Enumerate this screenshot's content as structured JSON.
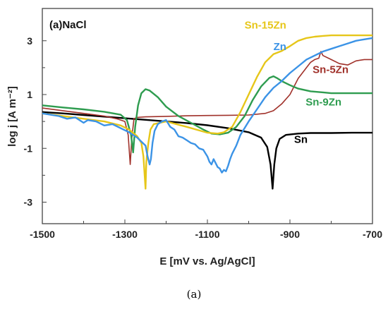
{
  "chart_data": {
    "type": "line",
    "panel_label": "(a)NaCl",
    "xlabel": "E [mV vs. Ag/AgCl]",
    "ylabel": "log j [A m⁻²]",
    "xlim": [
      -1500,
      -700
    ],
    "ylim": [
      -3.8,
      4.2
    ],
    "x_ticks": [
      -1500,
      -1300,
      -1100,
      -900,
      -700
    ],
    "x_tick_labels": [
      "-1500",
      "-1300",
      "-1100",
      "-900",
      "-700"
    ],
    "y_ticks": [
      3,
      1,
      -1,
      -3
    ],
    "y_tick_labels": [
      "3",
      "1",
      "-1",
      "-3"
    ],
    "grid": false,
    "series": [
      {
        "name": "Sn",
        "color": "#000000",
        "x": [
          -1500,
          -1450,
          -1400,
          -1350,
          -1300,
          -1250,
          -1200,
          -1150,
          -1100,
          -1050,
          -1000,
          -970,
          -955,
          -947,
          -942,
          -938,
          -933,
          -925,
          -910,
          -880,
          -850,
          -800,
          -750,
          -700
        ],
        "y": [
          0.35,
          0.3,
          0.24,
          0.18,
          0.12,
          0.06,
          0.0,
          -0.06,
          -0.14,
          -0.25,
          -0.4,
          -0.6,
          -0.95,
          -1.6,
          -2.5,
          -1.6,
          -1.0,
          -0.65,
          -0.5,
          -0.45,
          -0.43,
          -0.43,
          -0.42,
          -0.42
        ]
      },
      {
        "name": "Sn-5Zn",
        "color": "#a0312a",
        "x": [
          -1500,
          -1450,
          -1400,
          -1350,
          -1320,
          -1300,
          -1292,
          -1287,
          -1283,
          -1278,
          -1270,
          -1250,
          -1200,
          -1150,
          -1100,
          -1050,
          -1000,
          -960,
          -940,
          -920,
          -900,
          -880,
          -860,
          -850,
          -840,
          -830,
          -825,
          -820,
          -800,
          -780,
          -760,
          -740,
          -720,
          -700
        ],
        "y": [
          0.5,
          0.4,
          0.3,
          0.2,
          0.1,
          0.0,
          -0.5,
          -1.6,
          -0.6,
          0.1,
          0.15,
          0.17,
          0.19,
          0.21,
          0.22,
          0.23,
          0.24,
          0.3,
          0.4,
          0.65,
          1.0,
          1.6,
          2.0,
          2.2,
          2.3,
          2.35,
          2.6,
          2.45,
          2.3,
          2.15,
          2.1,
          2.25,
          2.3,
          2.3
        ]
      },
      {
        "name": "Sn-9Zn",
        "color": "#2e9c4f",
        "x": [
          -1500,
          -1450,
          -1400,
          -1350,
          -1310,
          -1295,
          -1285,
          -1280,
          -1275,
          -1268,
          -1260,
          -1250,
          -1240,
          -1220,
          -1200,
          -1170,
          -1140,
          -1110,
          -1090,
          -1070,
          -1050,
          -1030,
          -1010,
          -990,
          -970,
          -950,
          -940,
          -930,
          -920,
          -900,
          -880,
          -850,
          -820,
          -800,
          -750,
          -700
        ],
        "y": [
          0.6,
          0.52,
          0.45,
          0.36,
          0.25,
          0.05,
          -0.5,
          -1.15,
          -0.2,
          0.6,
          1.05,
          1.2,
          1.15,
          0.9,
          0.55,
          0.2,
          -0.05,
          -0.3,
          -0.45,
          -0.48,
          -0.42,
          -0.2,
          0.2,
          0.8,
          1.3,
          1.62,
          1.68,
          1.6,
          1.5,
          1.35,
          1.22,
          1.12,
          1.08,
          1.05,
          1.05,
          1.05
        ]
      },
      {
        "name": "Sn-15Zn",
        "color": "#e6c619",
        "x": [
          -1500,
          -1450,
          -1400,
          -1350,
          -1310,
          -1290,
          -1270,
          -1260,
          -1255,
          -1250,
          -1248,
          -1243,
          -1238,
          -1230,
          -1200,
          -1150,
          -1100,
          -1075,
          -1060,
          -1040,
          -1020,
          -1000,
          -980,
          -960,
          -940,
          -920,
          -900,
          -880,
          -860,
          -840,
          -820,
          -800,
          -750,
          -700
        ],
        "y": [
          0.3,
          0.2,
          0.1,
          0.0,
          -0.15,
          -0.3,
          -0.55,
          -0.8,
          -1.3,
          -2.5,
          -1.5,
          -0.8,
          -0.3,
          -0.1,
          0.0,
          -0.2,
          -0.42,
          -0.45,
          -0.4,
          -0.2,
          0.35,
          1.0,
          1.65,
          2.2,
          2.5,
          2.62,
          2.8,
          3.0,
          3.1,
          3.15,
          3.18,
          3.2,
          3.2,
          3.2
        ]
      },
      {
        "name": "Zn",
        "color": "#3b93e6",
        "x": [
          -1500,
          -1480,
          -1460,
          -1440,
          -1420,
          -1400,
          -1390,
          -1370,
          -1350,
          -1330,
          -1310,
          -1290,
          -1280,
          -1270,
          -1260,
          -1250,
          -1245,
          -1240,
          -1237,
          -1233,
          -1228,
          -1220,
          -1210,
          -1200,
          -1190,
          -1180,
          -1170,
          -1160,
          -1150,
          -1140,
          -1130,
          -1120,
          -1110,
          -1100,
          -1095,
          -1090,
          -1085,
          -1080,
          -1075,
          -1070,
          -1065,
          -1060,
          -1055,
          -1050,
          -1045,
          -1040,
          -1030,
          -1020,
          -1000,
          -980,
          -960,
          -940,
          -920,
          -900,
          -880,
          -860,
          -840,
          -820,
          -800,
          -780,
          -760,
          -740,
          -720,
          -700
        ],
        "y": [
          0.3,
          0.25,
          0.2,
          0.1,
          0.15,
          -0.05,
          0.05,
          0.0,
          -0.15,
          -0.1,
          -0.25,
          -0.4,
          -0.5,
          -0.6,
          -0.75,
          -0.9,
          -1.3,
          -1.6,
          -1.4,
          -0.8,
          -0.35,
          -0.1,
          0.0,
          0.05,
          -0.2,
          -0.3,
          -0.55,
          -0.6,
          -0.7,
          -0.8,
          -0.85,
          -1.0,
          -1.05,
          -1.3,
          -1.5,
          -1.6,
          -1.4,
          -1.55,
          -1.7,
          -1.75,
          -1.9,
          -1.8,
          -1.85,
          -1.65,
          -1.4,
          -1.2,
          -0.9,
          -0.5,
          0.0,
          0.45,
          0.9,
          1.25,
          1.5,
          1.8,
          2.05,
          2.3,
          2.45,
          2.6,
          2.7,
          2.8,
          2.9,
          3.0,
          3.05,
          3.1
        ]
      }
    ],
    "legend_labels": [
      {
        "name": "Sn-15Zn",
        "color": "#e6c619",
        "x": -1010,
        "y": 3.45
      },
      {
        "name": "Zn",
        "color": "#3b93e6",
        "x": -940,
        "y": 2.65
      },
      {
        "name": "Sn-5Zn",
        "color": "#a0312a",
        "x": -845,
        "y": 1.8
      },
      {
        "name": "Sn-9Zn",
        "color": "#2e9c4f",
        "x": -862,
        "y": 0.6
      },
      {
        "name": "Sn",
        "color": "#000000",
        "x": -890,
        "y": -0.8
      }
    ]
  },
  "caption": "(a)"
}
